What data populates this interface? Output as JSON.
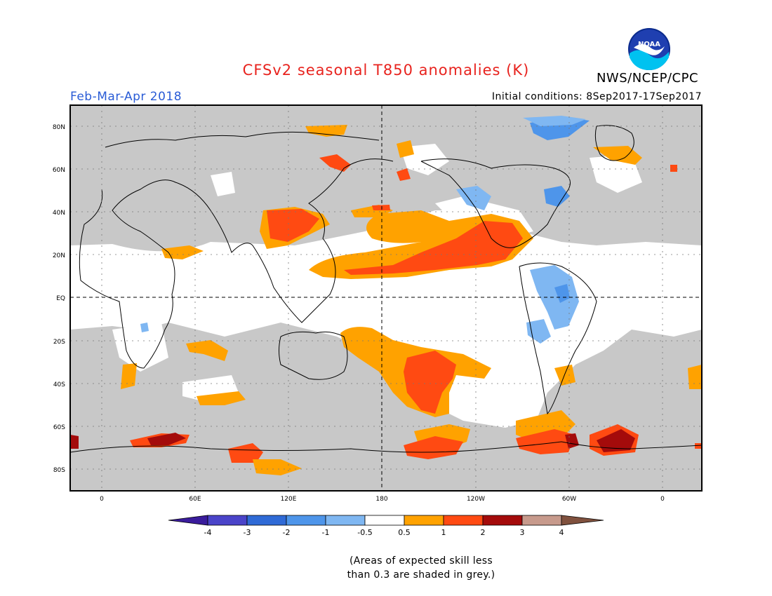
{
  "header": {
    "title": "CFSv2 seasonal T850 anomalies (K)",
    "title_color": "#e8231e",
    "season": "Feb-Mar-Apr 2018",
    "season_color": "#2a5cd6",
    "initial_conditions": "Initial conditions: 8Sep2017-17Sep2017",
    "agency": "NWS/NCEP/CPC",
    "logo_text": "NOAA"
  },
  "axes": {
    "lat_labels": [
      "80N",
      "60N",
      "40N",
      "20N",
      "EQ",
      "20S",
      "40S",
      "60S",
      "80S"
    ],
    "lat_values": [
      80,
      60,
      40,
      20,
      0,
      -20,
      -40,
      -60,
      -80
    ],
    "lon_labels": [
      "0",
      "60E",
      "120E",
      "180",
      "120W",
      "60W",
      "0"
    ],
    "lon_values": [
      0,
      60,
      120,
      180,
      240,
      300,
      360
    ]
  },
  "colorbar": {
    "tick_labels": [
      "-4",
      "-3",
      "-2",
      "-1",
      "-0.5",
      "0.5",
      "1",
      "2",
      "3",
      "4"
    ],
    "colors": [
      "#3a1c9c",
      "#4a44c9",
      "#2f6ad6",
      "#4e95ea",
      "#7fb7f2",
      "#ffffff",
      "#ffa200",
      "#ff4a12",
      "#a40b0b",
      "#c79a8c",
      "#80513e"
    ]
  },
  "map_colors": {
    "grey": "#c8c8c8",
    "white": "#ffffff",
    "orange": "#ffa200",
    "red": "#ff4a12",
    "darkred": "#a40b0b",
    "lightblue": "#7fb7f2",
    "midblue": "#4e95ea"
  },
  "note": {
    "line1": "(Areas of expected skill less",
    "line2": "than 0.3 are shaded in grey.)"
  }
}
